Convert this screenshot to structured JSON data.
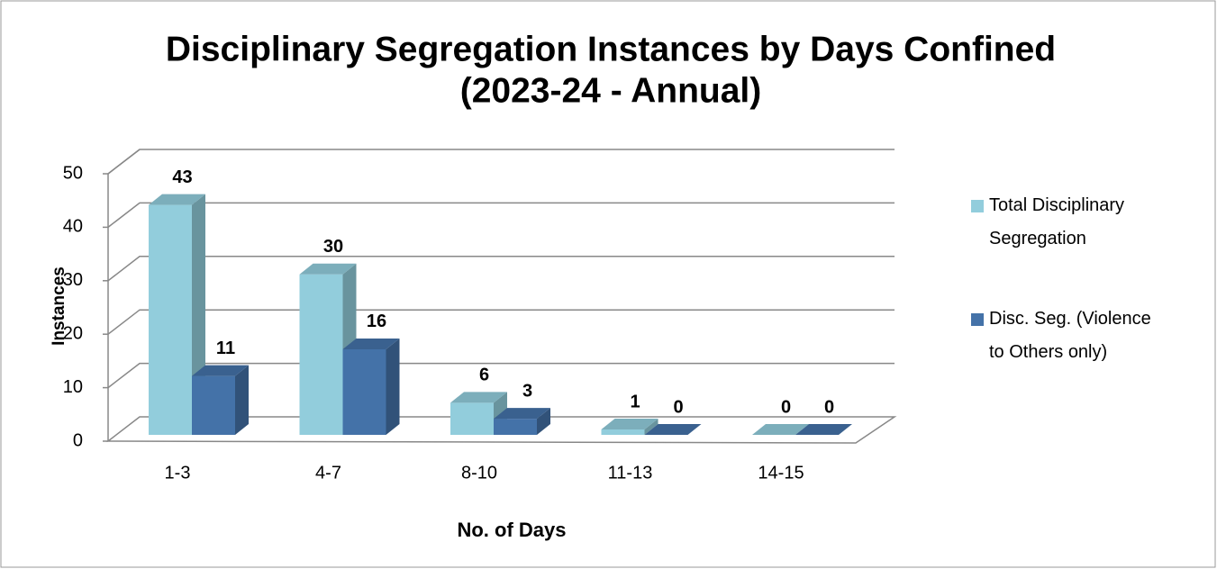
{
  "chart_data": {
    "type": "bar3d",
    "title": "Disciplinary Segregation Instances by Days Confined",
    "subtitle": "(2023-24 - Annual)",
    "x_label": "No. of Days",
    "y_label": "Instances",
    "categories": [
      "1-3",
      "4-7",
      "8-10",
      "11-13",
      "14-15"
    ],
    "series": [
      {
        "name": "Total Disciplinary Segregation",
        "color": "#92cddc",
        "values": [
          43,
          30,
          6,
          1,
          0
        ]
      },
      {
        "name": "Disc. Seg. (Violence to Others only)",
        "color": "#4472a8",
        "values": [
          11,
          16,
          3,
          0,
          0
        ]
      }
    ],
    "ylim": [
      0,
      50
    ],
    "yticks": [
      0,
      10,
      20,
      30,
      40,
      50
    ],
    "grid": true,
    "legend": "right"
  }
}
